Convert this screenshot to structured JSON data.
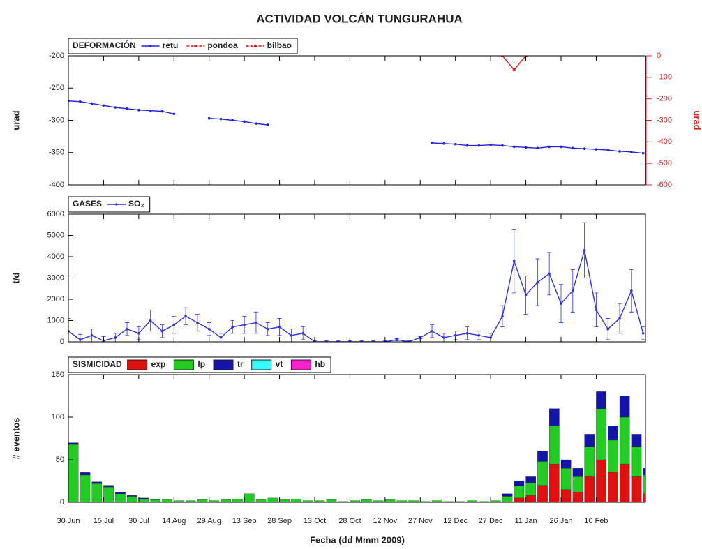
{
  "title": "ACTIVIDAD VOLCÁN TUNGURAHUA",
  "chart_data": [
    {
      "type": "line",
      "title": "DEFORMACIÓN",
      "ylabel": "urad",
      "y2label": "urad",
      "x": [
        0,
        5,
        10,
        15,
        20,
        25,
        30,
        35,
        40,
        45,
        50,
        55,
        60,
        65,
        70,
        75,
        80,
        85,
        90,
        95,
        100,
        105,
        110,
        115,
        120,
        125,
        130,
        135,
        140,
        145,
        150,
        155,
        160,
        165,
        170,
        175,
        180,
        185,
        190,
        195,
        200,
        205,
        210,
        215,
        220,
        225,
        230,
        235,
        240,
        245
      ],
      "xlim": [
        0,
        246
      ],
      "ylim": [
        -400,
        -200
      ],
      "yticks": [
        -400,
        -350,
        -300,
        -250,
        -200
      ],
      "y2lim": [
        -600,
        0
      ],
      "y2ticks": [
        -600,
        -500,
        -400,
        -300,
        -200,
        -100,
        0
      ],
      "series": [
        {
          "name": "retu",
          "color": "#2323d8",
          "marker": "circle",
          "values": [
            -270,
            -271,
            -274,
            -277,
            -280,
            -282,
            -284,
            -285,
            -286,
            -290,
            null,
            null,
            -297,
            -298,
            -300,
            -302,
            -305,
            -307,
            null,
            null,
            null,
            null,
            null,
            null,
            null,
            null,
            null,
            null,
            null,
            null,
            null,
            -335,
            -336,
            -337,
            -339,
            -339,
            -338,
            -339,
            -341,
            -342,
            -343,
            -341,
            -341,
            -343,
            -344,
            -345,
            -346,
            -348,
            -349,
            -351
          ]
        },
        {
          "name": "pondoa",
          "color": "#e02020",
          "marker": "square",
          "axis": "y2",
          "values": [
            null,
            null,
            null,
            null,
            null,
            null,
            null,
            null,
            null,
            null,
            null,
            null,
            null,
            null,
            null,
            null,
            null,
            null,
            null,
            null,
            null,
            null,
            null,
            null,
            null,
            null,
            null,
            null,
            null,
            null,
            null,
            null,
            null,
            null,
            null,
            null,
            null,
            0,
            -65,
            0,
            null,
            null,
            null,
            null,
            null,
            null,
            null,
            null,
            null,
            null
          ]
        },
        {
          "name": "bilbao",
          "color": "#c01010",
          "marker": "triangle",
          "axis": "y2",
          "values": [
            null,
            null,
            null,
            null,
            null,
            null,
            null,
            null,
            null,
            null,
            null,
            null,
            null,
            null,
            null,
            null,
            null,
            null,
            null,
            null,
            null,
            null,
            null,
            null,
            null,
            null,
            null,
            null,
            null,
            null,
            null,
            null,
            null,
            null,
            null,
            null,
            null,
            null,
            null,
            null,
            null,
            null,
            null,
            null,
            null,
            null,
            null,
            null,
            null,
            null
          ]
        }
      ]
    },
    {
      "type": "line",
      "title": "GASES",
      "ylabel": "t/d",
      "x": [
        0,
        5,
        10,
        15,
        20,
        25,
        30,
        35,
        40,
        45,
        50,
        55,
        60,
        65,
        70,
        75,
        80,
        85,
        90,
        95,
        100,
        105,
        110,
        115,
        120,
        125,
        130,
        135,
        140,
        145,
        150,
        155,
        160,
        165,
        170,
        175,
        180,
        185,
        190,
        195,
        200,
        205,
        210,
        215,
        220,
        225,
        230,
        235,
        240,
        245
      ],
      "xlim": [
        0,
        246
      ],
      "ylim": [
        0,
        6000
      ],
      "yticks": [
        0,
        1000,
        2000,
        3000,
        4000,
        5000,
        6000
      ],
      "series": [
        {
          "name": "SO₂",
          "color": "#3333dd",
          "marker": "circle",
          "values": [
            500,
            100,
            300,
            50,
            200,
            600,
            400,
            1000,
            500,
            800,
            1200,
            900,
            600,
            200,
            700,
            800,
            900,
            600,
            700,
            300,
            400,
            0,
            0,
            0,
            0,
            0,
            0,
            0,
            100,
            0,
            200,
            500,
            200,
            300,
            400,
            300,
            200,
            1200,
            3800,
            2200,
            2800,
            3200,
            1800,
            2400,
            4300,
            1500,
            600,
            1100,
            2400,
            400
          ],
          "errors": [
            600,
            250,
            300,
            200,
            200,
            300,
            300,
            500,
            300,
            400,
            400,
            400,
            300,
            200,
            300,
            400,
            500,
            300,
            400,
            300,
            300,
            50,
            50,
            50,
            50,
            50,
            50,
            50,
            50,
            50,
            50,
            300,
            200,
            200,
            300,
            200,
            200,
            500,
            1500,
            900,
            1100,
            1000,
            900,
            1000,
            1300,
            800,
            500,
            700,
            1000,
            300
          ]
        }
      ]
    },
    {
      "type": "bar",
      "title": "SISMICIDAD",
      "ylabel": "# eventos",
      "xlabel": "Fecha (dd Mmm 2009)",
      "stacked": true,
      "x": [
        0,
        5,
        10,
        15,
        20,
        25,
        30,
        35,
        40,
        45,
        50,
        55,
        60,
        65,
        70,
        75,
        80,
        85,
        90,
        95,
        100,
        105,
        110,
        115,
        120,
        125,
        130,
        135,
        140,
        145,
        150,
        155,
        160,
        165,
        170,
        175,
        180,
        185,
        190,
        195,
        200,
        205,
        210,
        215,
        220,
        225,
        230,
        235,
        240,
        245
      ],
      "xlim": [
        0,
        246
      ],
      "ylim": [
        0,
        150
      ],
      "yticks": [
        0,
        50,
        100,
        150
      ],
      "xticks": [
        {
          "value": 0,
          "label": "30 Jun"
        },
        {
          "value": 15,
          "label": "15 Jul"
        },
        {
          "value": 30,
          "label": "30 Jul"
        },
        {
          "value": 45,
          "label": "14 Aug"
        },
        {
          "value": 60,
          "label": "29 Aug"
        },
        {
          "value": 75,
          "label": "13 Sep"
        },
        {
          "value": 90,
          "label": "28 Sep"
        },
        {
          "value": 105,
          "label": "13 Oct"
        },
        {
          "value": 120,
          "label": "28 Oct"
        },
        {
          "value": 135,
          "label": "12 Nov"
        },
        {
          "value": 150,
          "label": "27 Nov"
        },
        {
          "value": 165,
          "label": "12 Dec"
        },
        {
          "value": 180,
          "label": "27 Dec"
        },
        {
          "value": 195,
          "label": "11 Jan"
        },
        {
          "value": 210,
          "label": "26 Jan"
        },
        {
          "value": 225,
          "label": "10 Feb"
        }
      ],
      "series": [
        {
          "name": "exp",
          "color": "#e01010",
          "values": [
            0,
            0,
            0,
            0,
            0,
            0,
            0,
            0,
            0,
            0,
            0,
            0,
            0,
            0,
            0,
            0,
            0,
            0,
            0,
            0,
            0,
            0,
            0,
            0,
            0,
            0,
            0,
            0,
            0,
            0,
            0,
            0,
            0,
            0,
            0,
            0,
            0,
            0,
            5,
            8,
            20,
            45,
            15,
            12,
            30,
            50,
            35,
            45,
            30,
            10
          ]
        },
        {
          "name": "lp",
          "color": "#22cc22",
          "values": [
            68,
            32,
            22,
            18,
            10,
            7,
            4,
            3,
            3,
            2,
            2,
            3,
            2,
            3,
            4,
            10,
            3,
            5,
            3,
            4,
            2,
            2,
            3,
            1,
            2,
            3,
            2,
            3,
            2,
            2,
            1,
            2,
            1,
            1,
            2,
            1,
            2,
            7,
            14,
            15,
            28,
            45,
            25,
            18,
            35,
            60,
            38,
            55,
            35,
            22
          ]
        },
        {
          "name": "tr",
          "color": "#1414a8",
          "values": [
            2,
            3,
            2,
            2,
            2,
            1,
            1,
            1,
            0,
            0,
            0,
            0,
            0,
            0,
            0,
            0,
            0,
            0,
            0,
            0,
            0,
            0,
            0,
            0,
            0,
            0,
            0,
            0,
            0,
            0,
            0,
            0,
            0,
            0,
            0,
            0,
            0,
            3,
            6,
            7,
            12,
            20,
            10,
            10,
            15,
            20,
            17,
            25,
            15,
            8
          ]
        },
        {
          "name": "vt",
          "color": "#33ffff",
          "values": [
            0,
            0,
            0,
            0,
            0,
            0,
            0,
            0,
            0,
            0,
            0,
            0,
            0,
            0,
            0,
            0,
            0,
            0,
            0,
            0,
            0,
            0,
            0,
            0,
            0,
            0,
            0,
            0,
            0,
            0,
            0,
            0,
            0,
            0,
            0,
            0,
            0,
            0,
            0,
            0,
            0,
            0,
            0,
            0,
            0,
            0,
            0,
            0,
            0,
            0
          ]
        },
        {
          "name": "hb",
          "color": "#ff22cc",
          "values": [
            0,
            0,
            0,
            0,
            0,
            0,
            0,
            0,
            0,
            0,
            0,
            0,
            0,
            0,
            0,
            0,
            0,
            0,
            0,
            0,
            0,
            0,
            0,
            0,
            0,
            0,
            0,
            0,
            0,
            0,
            0,
            0,
            0,
            0,
            0,
            0,
            0,
            0,
            0,
            0,
            0,
            0,
            0,
            0,
            0,
            0,
            0,
            0,
            0,
            0
          ]
        }
      ]
    }
  ]
}
